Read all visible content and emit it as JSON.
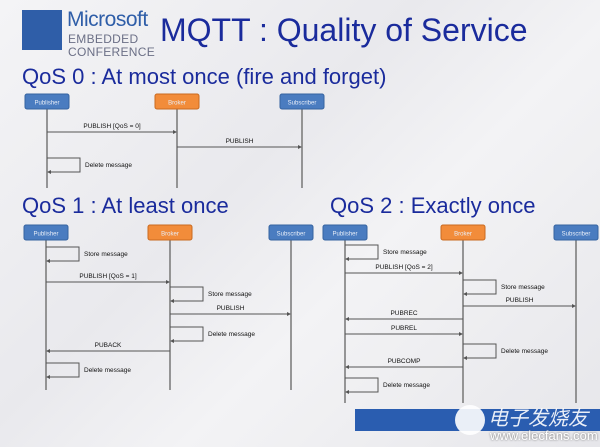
{
  "logo": {
    "line1": "Microsoft",
    "line2": "EMBEDDED",
    "line3": "CONFERENCE"
  },
  "title": "MQTT : Quality of Service",
  "colors": {
    "title": "#1a2b9c",
    "actor": "#4a7cc0",
    "broker": "#f28c3a",
    "line": "#555555"
  },
  "diagrams": [
    {
      "heading": "QoS 0 : At most once (fire and forget)",
      "actors": [
        "Publisher",
        "Broker",
        "Subscriber"
      ],
      "steps": [
        {
          "type": "msg",
          "from": 0,
          "to": 1,
          "label": "PUBLISH [QoS = 0]"
        },
        {
          "type": "msg",
          "from": 1,
          "to": 2,
          "label": "PUBLISH"
        },
        {
          "type": "self",
          "on": 0,
          "label": "Delete message"
        }
      ]
    },
    {
      "heading": "QoS 1 : At least once",
      "actors": [
        "Publisher",
        "Broker",
        "Subscriber"
      ],
      "steps": [
        {
          "type": "self",
          "on": 0,
          "label": "Store message"
        },
        {
          "type": "msg",
          "from": 0,
          "to": 1,
          "label": "PUBLISH [QoS = 1]"
        },
        {
          "type": "self",
          "on": 1,
          "label": "Store message"
        },
        {
          "type": "msg",
          "from": 1,
          "to": 2,
          "label": "PUBLISH"
        },
        {
          "type": "self",
          "on": 1,
          "label": "Delete message"
        },
        {
          "type": "msg",
          "from": 1,
          "to": 0,
          "label": "PUBACK"
        },
        {
          "type": "self",
          "on": 0,
          "label": "Delete message"
        }
      ]
    },
    {
      "heading": "QoS 2 : Exactly once",
      "actors": [
        "Publisher",
        "Broker",
        "Subscriber"
      ],
      "steps": [
        {
          "type": "self",
          "on": 0,
          "label": "Store message"
        },
        {
          "type": "msg",
          "from": 0,
          "to": 1,
          "label": "PUBLISH [QoS = 2]"
        },
        {
          "type": "self",
          "on": 1,
          "label": "Store message"
        },
        {
          "type": "msg",
          "from": 1,
          "to": 2,
          "label": "PUBLISH"
        },
        {
          "type": "msg",
          "from": 1,
          "to": 0,
          "label": "PUBREC"
        },
        {
          "type": "msg",
          "from": 0,
          "to": 1,
          "label": "PUBREL"
        },
        {
          "type": "self",
          "on": 1,
          "label": "Delete message"
        },
        {
          "type": "msg",
          "from": 1,
          "to": 0,
          "label": "PUBCOMP"
        },
        {
          "type": "self",
          "on": 0,
          "label": "Delete message"
        }
      ]
    }
  ],
  "watermark": {
    "cn": "电子发烧友",
    "url": "www.elecfans.com"
  }
}
